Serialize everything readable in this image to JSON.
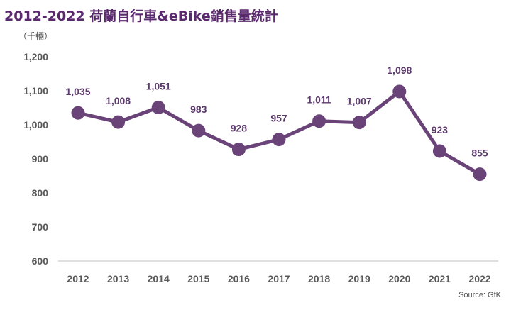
{
  "title": "2012-2022 荷蘭自行車&eBike銷售量統計",
  "unit_label": "（千輛）",
  "source": "Source: GfK",
  "colors": {
    "line": "#6a4478",
    "title": "#5b2a6e"
  },
  "chart_data": {
    "type": "line",
    "categories": [
      "2012",
      "2013",
      "2014",
      "2015",
      "2016",
      "2017",
      "2018",
      "2019",
      "2020",
      "2021",
      "2022"
    ],
    "series": [
      {
        "values": [
          1035,
          1008,
          1051,
          983,
          928,
          957,
          1011,
          1007,
          1098,
          923,
          855
        ],
        "labels": [
          "1,035",
          "1,008",
          "1,051",
          "983",
          "928",
          "957",
          "1,011",
          "1,007",
          "1,098",
          "923",
          "855"
        ]
      }
    ],
    "ylim": [
      600,
      1200
    ],
    "yticks": [
      600,
      700,
      800,
      900,
      1000,
      1100,
      1200
    ],
    "ytick_labels": [
      "600",
      "700",
      "800",
      "900",
      "1,000",
      "1,100",
      "1,200"
    ],
    "grid": false,
    "legend": "none"
  }
}
